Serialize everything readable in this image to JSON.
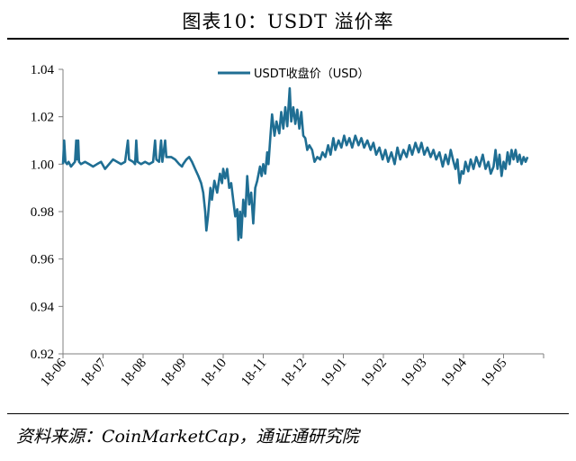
{
  "header": {
    "title": "图表10：USDT 溢价率"
  },
  "footer": {
    "source": "资料来源：CoinMarketCap，通证通研究院"
  },
  "colors": {
    "series": "#1f6e93",
    "axis": "#7f7f7f"
  },
  "chart_data": {
    "type": "line",
    "title": "图表10：USDT 溢价率",
    "xlabel": "",
    "ylabel": "",
    "ylim": [
      0.92,
      1.04
    ],
    "yticks": [
      "1.04",
      "1.02",
      "1.00",
      "0.98",
      "0.96",
      "0.94",
      "0.92"
    ],
    "ytick_values": [
      1.04,
      1.02,
      1.0,
      0.98,
      0.96,
      0.94,
      0.92
    ],
    "categories": [
      "18-06",
      "18-07",
      "18-08",
      "18-09",
      "18-10",
      "18-11",
      "18-12",
      "19-01",
      "19-02",
      "19-03",
      "19-04",
      "19-05"
    ],
    "x_range_months": [
      0,
      12
    ],
    "grid": false,
    "legend": {
      "position": "top-center"
    },
    "series": [
      {
        "name": "USDT收盘价（USD）",
        "points": [
          [
            0.0,
            1.0
          ],
          [
            0.03,
            1.01
          ],
          [
            0.06,
            1.001
          ],
          [
            0.1,
            1.0
          ],
          [
            0.14,
            1.001
          ],
          [
            0.2,
            0.999
          ],
          [
            0.25,
            1.0
          ],
          [
            0.3,
            1.001
          ],
          [
            0.33,
            1.01
          ],
          [
            0.35,
            1.002
          ],
          [
            0.38,
            1.01
          ],
          [
            0.4,
            1.001
          ],
          [
            0.45,
            1.0
          ],
          [
            0.55,
            1.001
          ],
          [
            0.65,
            1.0
          ],
          [
            0.75,
            0.999
          ],
          [
            0.85,
            1.0
          ],
          [
            0.95,
            1.001
          ],
          [
            1.05,
            0.998
          ],
          [
            1.15,
            1.0
          ],
          [
            1.25,
            1.002
          ],
          [
            1.35,
            1.001
          ],
          [
            1.45,
            1.0
          ],
          [
            1.55,
            1.001
          ],
          [
            1.62,
            1.01
          ],
          [
            1.65,
            1.002
          ],
          [
            1.75,
            1.001
          ],
          [
            1.8,
            1.0
          ],
          [
            1.83,
            1.01
          ],
          [
            1.86,
            1.001
          ],
          [
            1.95,
            1.0
          ],
          [
            2.05,
            1.001
          ],
          [
            2.15,
            1.0
          ],
          [
            2.25,
            1.001
          ],
          [
            2.3,
            1.01
          ],
          [
            2.33,
            1.002
          ],
          [
            2.4,
            1.001
          ],
          [
            2.45,
            1.01
          ],
          [
            2.48,
            1.001
          ],
          [
            2.55,
            1.01
          ],
          [
            2.58,
            1.003
          ],
          [
            2.7,
            1.003
          ],
          [
            2.8,
            1.002
          ],
          [
            2.9,
            1.0
          ],
          [
            2.97,
            0.999
          ],
          [
            3.0,
            1.0
          ],
          [
            3.08,
            1.002
          ],
          [
            3.15,
            1.003
          ],
          [
            3.22,
            1.001
          ],
          [
            3.3,
            0.998
          ],
          [
            3.38,
            0.995
          ],
          [
            3.45,
            0.992
          ],
          [
            3.5,
            0.988
          ],
          [
            3.55,
            0.98
          ],
          [
            3.58,
            0.972
          ],
          [
            3.62,
            0.978
          ],
          [
            3.68,
            0.99
          ],
          [
            3.72,
            0.985
          ],
          [
            3.78,
            0.993
          ],
          [
            3.85,
            0.988
          ],
          [
            3.92,
            0.996
          ],
          [
            3.97,
            0.992
          ],
          [
            4.0,
            0.998
          ],
          [
            4.05,
            0.994
          ],
          [
            4.1,
            0.998
          ],
          [
            4.15,
            0.99
          ],
          [
            4.2,
            0.992
          ],
          [
            4.25,
            0.985
          ],
          [
            4.3,
            0.978
          ],
          [
            4.35,
            0.981
          ],
          [
            4.38,
            0.968
          ],
          [
            4.42,
            0.98
          ],
          [
            4.45,
            0.969
          ],
          [
            4.5,
            0.985
          ],
          [
            4.55,
            0.978
          ],
          [
            4.6,
            0.995
          ],
          [
            4.65,
            0.983
          ],
          [
            4.7,
            0.988
          ],
          [
            4.75,
            0.975
          ],
          [
            4.8,
            0.99
          ],
          [
            4.85,
            0.993
          ],
          [
            4.92,
            0.999
          ],
          [
            4.96,
            0.995
          ],
          [
            5.0,
            1.0
          ],
          [
            5.05,
            0.996
          ],
          [
            5.1,
            1.005
          ],
          [
            5.13,
            1.0
          ],
          [
            5.18,
            1.012
          ],
          [
            5.22,
            1.021
          ],
          [
            5.28,
            1.012
          ],
          [
            5.33,
            1.018
          ],
          [
            5.4,
            1.013
          ],
          [
            5.45,
            1.022
          ],
          [
            5.5,
            1.015
          ],
          [
            5.55,
            1.024
          ],
          [
            5.6,
            1.016
          ],
          [
            5.66,
            1.032
          ],
          [
            5.7,
            1.018
          ],
          [
            5.75,
            1.024
          ],
          [
            5.8,
            1.017
          ],
          [
            5.85,
            1.023
          ],
          [
            5.9,
            1.015
          ],
          [
            5.95,
            1.022
          ],
          [
            6.0,
            1.012
          ],
          [
            6.05,
            1.011
          ],
          [
            6.1,
            1.006
          ],
          [
            6.15,
            1.008
          ],
          [
            6.22,
            1.006
          ],
          [
            6.28,
            1.001
          ],
          [
            6.35,
            1.003
          ],
          [
            6.42,
            1.002
          ],
          [
            6.48,
            1.005
          ],
          [
            6.55,
            1.003
          ],
          [
            6.62,
            1.008
          ],
          [
            6.68,
            1.004
          ],
          [
            6.75,
            1.011
          ],
          [
            6.8,
            1.006
          ],
          [
            6.88,
            1.01
          ],
          [
            6.95,
            1.007
          ],
          [
            7.02,
            1.012
          ],
          [
            7.08,
            1.008
          ],
          [
            7.15,
            1.011
          ],
          [
            7.22,
            1.007
          ],
          [
            7.3,
            1.012
          ],
          [
            7.38,
            1.008
          ],
          [
            7.45,
            1.011
          ],
          [
            7.52,
            1.007
          ],
          [
            7.6,
            1.01
          ],
          [
            7.68,
            1.006
          ],
          [
            7.75,
            1.009
          ],
          [
            7.82,
            1.004
          ],
          [
            7.9,
            1.007
          ],
          [
            7.98,
            1.002
          ],
          [
            8.05,
            1.006
          ],
          [
            8.12,
            1.001
          ],
          [
            8.2,
            1.005
          ],
          [
            8.28,
            1.0
          ],
          [
            8.35,
            1.007
          ],
          [
            8.42,
            1.002
          ],
          [
            8.5,
            1.006
          ],
          [
            8.58,
            1.003
          ],
          [
            8.65,
            1.008
          ],
          [
            8.72,
            1.004
          ],
          [
            8.8,
            1.009
          ],
          [
            8.88,
            1.005
          ],
          [
            8.95,
            1.009
          ],
          [
            9.02,
            1.004
          ],
          [
            9.1,
            1.007
          ],
          [
            9.18,
            1.003
          ],
          [
            9.25,
            1.006
          ],
          [
            9.32,
            1.002
          ],
          [
            9.4,
            1.005
          ],
          [
            9.48,
            0.999
          ],
          [
            9.55,
            1.004
          ],
          [
            9.62,
            1.0
          ],
          [
            9.68,
            1.006
          ],
          [
            9.75,
            1.001
          ],
          [
            9.8,
            0.998
          ],
          [
            9.85,
            1.002
          ],
          [
            9.9,
            0.992
          ],
          [
            9.95,
            0.997
          ],
          [
            10.0,
            0.996
          ],
          [
            10.05,
            1.001
          ],
          [
            10.12,
            0.997
          ],
          [
            10.18,
            1.002
          ],
          [
            10.25,
            0.998
          ],
          [
            10.32,
            1.003
          ],
          [
            10.4,
            0.999
          ],
          [
            10.48,
            1.004
          ],
          [
            10.55,
            0.998
          ],
          [
            10.62,
            1.001
          ],
          [
            10.68,
            0.996
          ],
          [
            10.75,
            0.999
          ],
          [
            10.8,
            1.006
          ],
          [
            10.85,
            0.998
          ],
          [
            10.9,
            1.004
          ],
          [
            10.95,
            0.995
          ],
          [
            11.0,
            1.001
          ],
          [
            11.05,
            0.998
          ],
          [
            11.1,
            1.005
          ],
          [
            11.15,
            1.0
          ],
          [
            11.2,
            1.006
          ],
          [
            11.25,
            1.002
          ],
          [
            11.3,
            1.006
          ],
          [
            11.35,
            1.001
          ],
          [
            11.4,
            1.004
          ],
          [
            11.45,
            1.0
          ],
          [
            11.5,
            1.003
          ],
          [
            11.55,
            1.001
          ],
          [
            11.6,
            1.003
          ]
        ]
      }
    ]
  }
}
